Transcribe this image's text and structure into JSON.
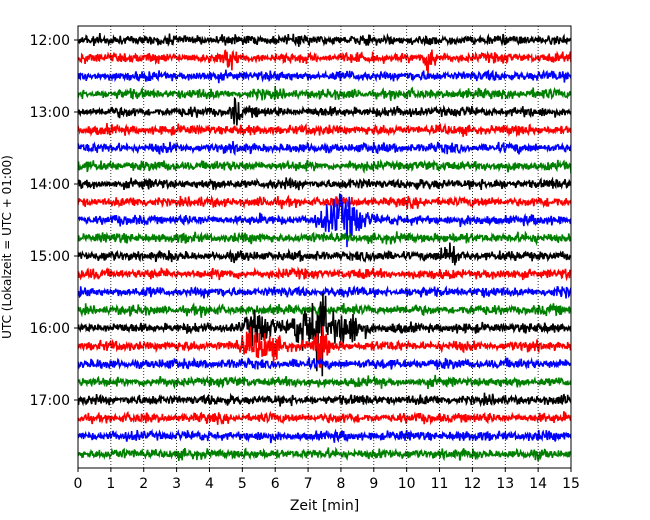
{
  "chart_data": {
    "type": "line",
    "title": "",
    "xlabel": "Zeit  [min]",
    "ylabel": "UTC (Lokalzeit = UTC + 01:00)",
    "xlim": [
      0,
      15
    ],
    "x_ticks": [
      "0",
      "1",
      "2",
      "3",
      "4",
      "5",
      "6",
      "7",
      "8",
      "9",
      "10",
      "11",
      "12",
      "13",
      "14",
      "15"
    ],
    "y_ticks": [
      "12:00",
      "13:00",
      "14:00",
      "15:00",
      "16:00",
      "17:00"
    ],
    "grid": {
      "x": true,
      "y": false,
      "style": "dotted"
    },
    "trace_interval_minutes": 15,
    "trace_start": "12:00",
    "trace_count": 24,
    "trace_colors": [
      "#000000",
      "#ff0000",
      "#0000ff",
      "#008000"
    ],
    "series_note": "seismogram traces, one per 15-minute interval, cycling colors",
    "events": [
      {
        "trace": 1,
        "x": 4.6,
        "amp": 1.6,
        "width": 0.15
      },
      {
        "trace": 1,
        "x": 10.7,
        "amp": 1.6,
        "width": 0.15
      },
      {
        "trace": 4,
        "x": 4.8,
        "amp": 1.5,
        "width": 0.12
      },
      {
        "trace": 10,
        "x": 8.1,
        "amp": 2.2,
        "width": 0.6
      },
      {
        "trace": 12,
        "x": 11.3,
        "amp": 1.4,
        "width": 0.2
      },
      {
        "trace": 16,
        "x": 5.5,
        "amp": 1.6,
        "width": 0.4
      },
      {
        "trace": 16,
        "x": 7.0,
        "amp": 2.6,
        "width": 0.5
      },
      {
        "trace": 16,
        "x": 7.4,
        "amp": 4.0,
        "width": 0.15
      },
      {
        "trace": 16,
        "x": 8.2,
        "amp": 1.8,
        "width": 0.5
      },
      {
        "trace": 17,
        "x": 5.6,
        "amp": 1.5,
        "width": 0.6
      },
      {
        "trace": 17,
        "x": 7.4,
        "amp": 2.8,
        "width": 0.15
      }
    ]
  }
}
